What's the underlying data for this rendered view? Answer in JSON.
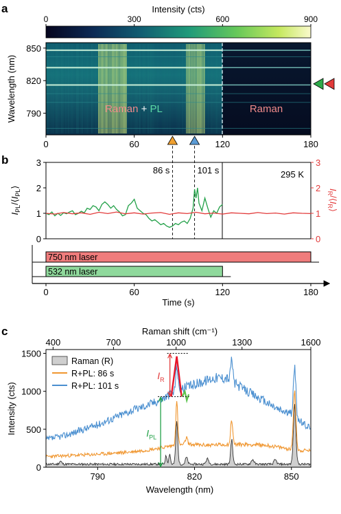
{
  "panels": {
    "a": "a",
    "b": "b",
    "c": "c"
  },
  "chart_data": [
    {
      "panel": "a",
      "type": "heatmap",
      "colorbar": {
        "label": "Intensity (cts)",
        "ticks": [
          0,
          300,
          600,
          900
        ],
        "range": [
          0,
          900
        ]
      },
      "ylabel": "Wavelength (nm)",
      "yticks": [
        850,
        820,
        790
      ],
      "ylim": [
        770,
        855
      ],
      "xticks": [
        0,
        60,
        120,
        180
      ],
      "xlim": [
        0,
        180
      ],
      "region_labels": {
        "raman": "Raman",
        "plus": " + ",
        "pl": "PL",
        "raman_only": "Raman"
      },
      "laser_off_time": 120,
      "bright_lines_nm": [
        848,
        832,
        816
      ],
      "markers": [
        {
          "x": 86,
          "color": "#f0a030"
        },
        {
          "x": 101,
          "color": "#5b9bd5"
        }
      ],
      "side_markers": [
        {
          "y": 817,
          "color": "#2eaa4a"
        },
        {
          "y": 817,
          "color": "#e23a3a"
        }
      ]
    },
    {
      "panel": "b",
      "type": "line",
      "ylabel_left_main": "I",
      "ylabel_left_sub": "PL",
      "ylabel_left_mid": "/⟨",
      "ylabel_left_end": "⟩",
      "ylabel_right_main": "I",
      "ylabel_right_sub": "R",
      "ylabel_right_mid": "/⟨",
      "ylabel_right_end": "⟩",
      "ylim": [
        0,
        3
      ],
      "yticks": [
        0,
        1,
        2,
        3
      ],
      "xlim": [
        0,
        180
      ],
      "xticks": [
        0,
        60,
        120,
        180
      ],
      "xlabel": "Time (s)",
      "temperature": "295 K",
      "annotations": [
        {
          "x": 86,
          "label": "86 s"
        },
        {
          "x": 101,
          "label": "101 s"
        }
      ],
      "laser_off_time": 120,
      "series": [
        {
          "name": "PL",
          "color": "#21a047",
          "x": [
            0,
            2,
            4,
            6,
            8,
            10,
            12,
            14,
            16,
            18,
            20,
            22,
            24,
            26,
            28,
            30,
            32,
            34,
            36,
            38,
            40,
            42,
            44,
            46,
            48,
            50,
            52,
            54,
            56,
            58,
            60,
            62,
            64,
            66,
            68,
            70,
            72,
            74,
            76,
            78,
            80,
            82,
            84,
            86,
            88,
            90,
            92,
            94,
            96,
            98,
            100,
            101,
            102,
            103,
            104,
            106,
            108,
            110,
            112,
            114,
            116,
            118,
            120
          ],
          "values": [
            1.0,
            0.95,
            1.05,
            0.9,
            1.0,
            0.92,
            1.02,
            0.98,
            1.05,
            1.1,
            0.95,
            1.0,
            1.08,
            1.02,
            1.2,
            1.15,
            1.3,
            1.25,
            1.1,
            1.35,
            1.45,
            1.35,
            1.2,
            1.3,
            1.15,
            1.05,
            0.9,
            0.95,
            1.3,
            1.4,
            1.55,
            1.2,
            1.1,
            1.0,
            0.95,
            0.8,
            0.7,
            0.75,
            0.65,
            0.55,
            0.6,
            0.5,
            0.45,
            0.5,
            0.6,
            0.55,
            0.65,
            0.7,
            0.6,
            0.8,
            1.2,
            1.95,
            1.6,
            2.0,
            1.4,
            1.1,
            1.6,
            1.2,
            0.85,
            1.1,
            1.0,
            1.25,
            1.35
          ]
        },
        {
          "name": "Raman",
          "color": "#e23a3a",
          "x": [
            0,
            6,
            12,
            18,
            24,
            30,
            36,
            42,
            48,
            54,
            60,
            66,
            72,
            78,
            84,
            90,
            96,
            102,
            108,
            114,
            120,
            126,
            132,
            138,
            144,
            150,
            156,
            162,
            168,
            174,
            180
          ],
          "values": [
            1.0,
            0.97,
            1.03,
            0.98,
            1.02,
            0.96,
            1.04,
            0.99,
            1.05,
            0.98,
            1.02,
            0.97,
            1.01,
            1.03,
            0.96,
            1.02,
            0.99,
            1.04,
            0.98,
            1.01,
            0.97,
            1.02,
            1.0,
            0.98,
            1.03,
            0.99,
            1.01,
            0.97,
            1.02,
            1.0,
            0.99
          ]
        }
      ]
    },
    {
      "panel": "b-lasers",
      "type": "bar",
      "lasers": [
        {
          "label": "750 nm laser",
          "start": 0,
          "end": 180,
          "color": "#ef7c7c"
        },
        {
          "label": "532 nm laser",
          "start": 0,
          "end": 120,
          "color": "#8fd99c"
        }
      ]
    },
    {
      "panel": "c",
      "type": "line",
      "xlabel": "Wavelength (nm)",
      "xlim": [
        774,
        856
      ],
      "xticks": [
        790,
        820,
        850
      ],
      "x2label": "Raman shift (cm⁻¹)",
      "x2ticks": [
        400,
        700,
        1000,
        1300,
        1600
      ],
      "x2_positions_nm": [
        776.2,
        794.9,
        814.3,
        834.7,
        856.0
      ],
      "ylabel": "Intensity (cts)",
      "ylim": [
        0,
        1550
      ],
      "yticks": [
        0,
        500,
        1000,
        1500
      ],
      "legend": {
        "placement": "upper-left"
      },
      "annotations": {
        "IR_main": "I",
        "IR_sub": "R",
        "IPL_main": "I",
        "IPL_sub": "PL",
        "IR_x": 814.5,
        "IR_top": 1500,
        "IR_bottom": 930,
        "IPL_x": 809.5,
        "IPL_top": 930,
        "IPL_bottom": 0
      },
      "series": [
        {
          "name": "Raman (R)",
          "color": "#9a9a9a",
          "fill": "#cfcfcf",
          "baseline": 40,
          "peaks": [
            [
              814.5,
              560,
              0.45
            ],
            [
              831.5,
              330,
              0.45
            ],
            [
              851.0,
              780,
              0.55
            ],
            [
              811.2,
              110,
              0.4
            ],
            [
              812.3,
              140,
              0.35
            ],
            [
              817.5,
              90,
              0.5
            ],
            [
              824.0,
              70,
              0.6
            ],
            [
              838.0,
              60,
              0.6
            ],
            [
              845.0,
              55,
              0.6
            ],
            [
              778.5,
              40,
              0.5
            ]
          ]
        },
        {
          "name": "R+PL: 86 s",
          "color": "#f0962f",
          "x": [
            774,
            790,
            800,
            806,
            810,
            814,
            818,
            824,
            830,
            836,
            842,
            848,
            852,
            856
          ],
          "values": [
            140,
            170,
            200,
            230,
            260,
            290,
            300,
            290,
            300,
            300,
            290,
            250,
            220,
            220
          ],
          "peaks": [
            [
              814.5,
              560,
              0.45
            ],
            [
              831.5,
              330,
              0.45
            ],
            [
              851.0,
              780,
              0.55
            ],
            [
              817.5,
              90,
              0.5
            ]
          ]
        },
        {
          "name": "R+PL: 101 s",
          "color": "#4a8fd0",
          "x": [
            774,
            780,
            790,
            800,
            806,
            810,
            814,
            818,
            822,
            826,
            830,
            834,
            838,
            842,
            846,
            850,
            854,
            856
          ],
          "values": [
            360,
            420,
            560,
            740,
            830,
            900,
            1000,
            1060,
            1120,
            1180,
            1180,
            1060,
            960,
            860,
            760,
            700,
            560,
            520
          ],
          "peaks": [
            [
              814.5,
              350,
              0.45
            ],
            [
              831.5,
              300,
              0.45
            ],
            [
              851.0,
              640,
              0.55
            ]
          ]
        },
        {
          "name": "PL-peak",
          "color": "#e8152a",
          "x": [
            812.8,
            814.5,
            816.0
          ],
          "values": [
            930,
            1460,
            930
          ]
        }
      ]
    }
  ]
}
